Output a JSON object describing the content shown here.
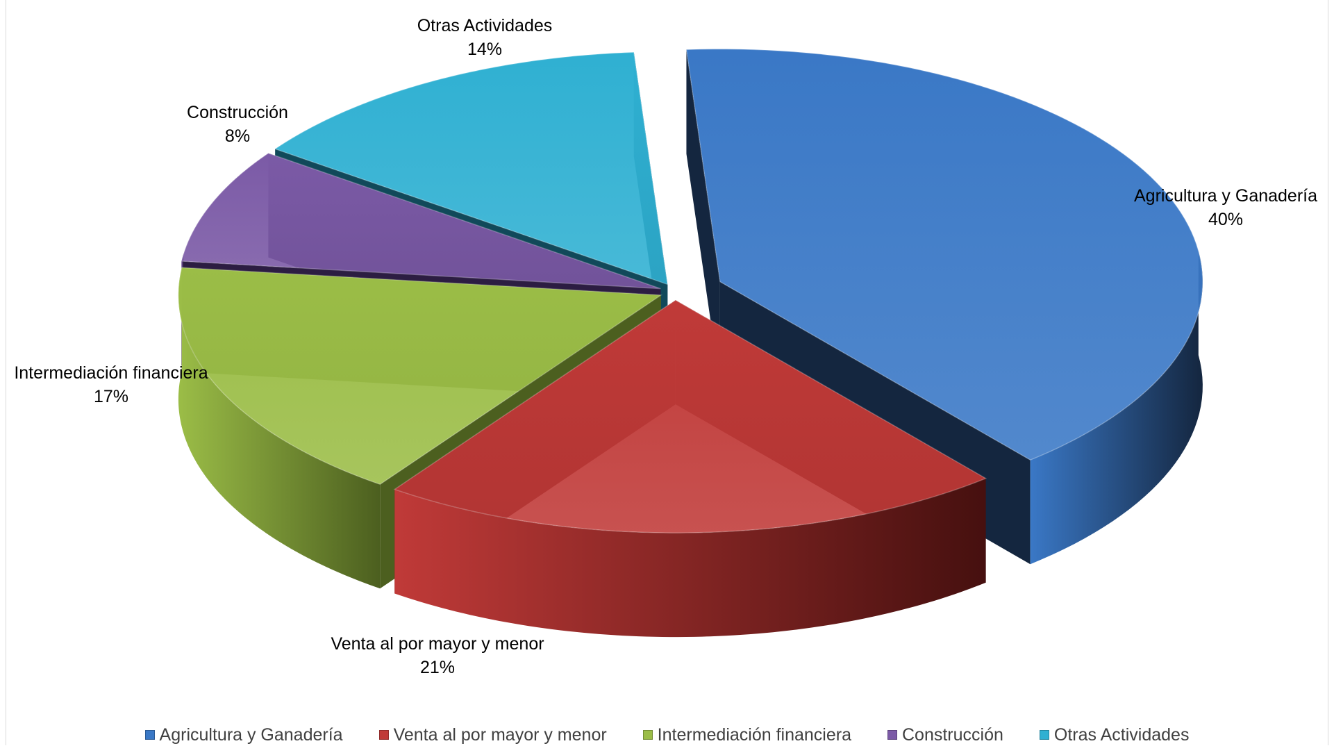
{
  "chart_data": {
    "type": "pie",
    "title": "",
    "slices": [
      {
        "label": "Agricultura y Ganadería",
        "value": 40,
        "pct_label": "40%",
        "color": "#3a78c6",
        "dark": "#14263f"
      },
      {
        "label": "Venta al por mayor y menor",
        "value": 21,
        "pct_label": "21%",
        "color": "#c03a38",
        "dark": "#46100f"
      },
      {
        "label": "Intermediación financiera",
        "value": 17,
        "pct_label": "17%",
        "color": "#9bbd47",
        "dark": "#4c5f1f"
      },
      {
        "label": "Construcción",
        "value": 8,
        "pct_label": "8%",
        "color": "#7b5aa6",
        "dark": "#2c1d42"
      },
      {
        "label": "Otras Actividades",
        "value": 14,
        "pct_label": "14%",
        "color": "#2fb0d2",
        "dark": "#11495a"
      }
    ],
    "legend_position": "bottom",
    "exploded": true,
    "three_d": true
  }
}
